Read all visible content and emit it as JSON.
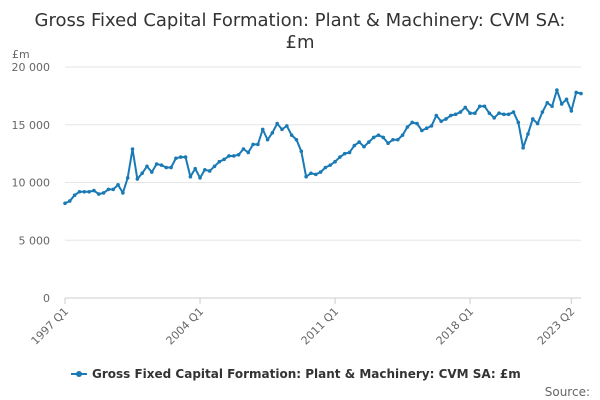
{
  "chart_data": {
    "type": "line",
    "title_lines": [
      "Gross Fixed Capital Formation: Plant & Machinery: CVM SA:",
      "£m"
    ],
    "ylabel": "£m",
    "xlabel": "",
    "ylim": [
      0,
      20000
    ],
    "yticks": [
      0,
      5000,
      10000,
      15000,
      20000
    ],
    "ytick_labels": [
      "0",
      "5 000",
      "10 000",
      "15 000",
      "20 000"
    ],
    "xtick_labels": [
      {
        "index": 0,
        "label": "1997 Q1"
      },
      {
        "index": 28,
        "label": "2004 Q1"
      },
      {
        "index": 56,
        "label": "2011 Q1"
      },
      {
        "index": 84,
        "label": "2018 Q1"
      },
      {
        "index": 105,
        "label": "2023 Q2"
      }
    ],
    "grid": true,
    "legend": "bottom",
    "colors": {
      "series": "#1a7ab5",
      "grid": "#e6e6e6",
      "axis": "#cccccc"
    },
    "series": [
      {
        "name": "Gross Fixed Capital Formation: Plant & Machinery: CVM SA: £m",
        "values": [
          8200,
          8400,
          8900,
          9200,
          9200,
          9200,
          9300,
          9000,
          9100,
          9400,
          9400,
          9800,
          9100,
          10400,
          12900,
          10300,
          10800,
          11400,
          10900,
          11600,
          11500,
          11300,
          11300,
          12100,
          12200,
          12200,
          10500,
          11200,
          10400,
          11100,
          11000,
          11400,
          11800,
          12000,
          12300,
          12300,
          12400,
          12900,
          12600,
          13300,
          13300,
          14600,
          13700,
          14300,
          15100,
          14600,
          14900,
          14100,
          13700,
          12700,
          10500,
          10800,
          10700,
          10900,
          11300,
          11500,
          11800,
          12200,
          12500,
          12600,
          13200,
          13500,
          13100,
          13500,
          13900,
          14100,
          13900,
          13400,
          13700,
          13700,
          14100,
          14800,
          15200,
          15100,
          14500,
          14700,
          14900,
          15800,
          15300,
          15500,
          15800,
          15900,
          16100,
          16500,
          16000,
          16000,
          16600,
          16600,
          16000,
          15600,
          16000,
          15900,
          15900,
          16100,
          15200,
          13000,
          14200,
          15500,
          15100,
          16100,
          16900,
          16600,
          18000,
          16800,
          17200,
          16200,
          17800,
          17700
        ]
      }
    ]
  },
  "source_label": "Source:"
}
